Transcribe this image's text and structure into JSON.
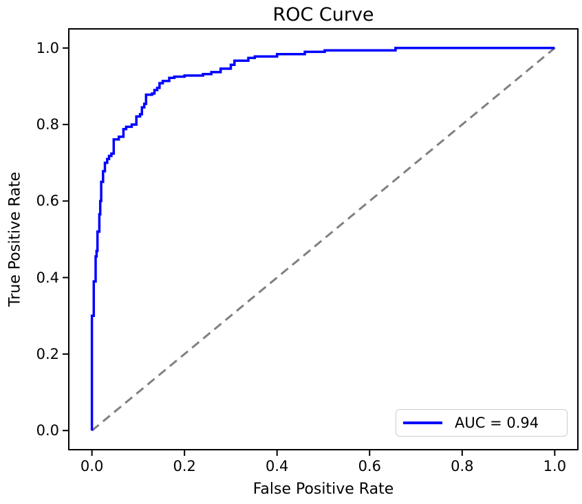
{
  "colors": {
    "curve": "#0000ff",
    "diagonal": "#808080",
    "spine": "#000000",
    "text": "#000000",
    "legend_border": "#cccccc",
    "background": "#ffffff"
  },
  "chart_data": {
    "type": "line",
    "title": "ROC Curve",
    "xlabel": "False Positive Rate",
    "ylabel": "True Positive Rate",
    "xlim": [
      -0.05,
      1.05
    ],
    "ylim": [
      -0.05,
      1.05
    ],
    "grid": false,
    "x_ticks": [
      0.0,
      0.2,
      0.4,
      0.6,
      0.8,
      1.0
    ],
    "y_ticks": [
      0.0,
      0.2,
      0.4,
      0.6,
      0.8,
      1.0
    ],
    "x_tick_labels": [
      "0.0",
      "0.2",
      "0.4",
      "0.6",
      "0.8",
      "1.0"
    ],
    "y_tick_labels": [
      "0.0",
      "0.2",
      "0.4",
      "0.6",
      "0.8",
      "1.0"
    ],
    "legend": {
      "label": "AUC = 0.94",
      "position": "lower right"
    },
    "auc": 0.94,
    "series": [
      {
        "name": "ROC curve",
        "data_name": "roc-curve-line",
        "color": "#0000ff",
        "width": 3.5,
        "dash": "",
        "points": [
          [
            0.0,
            0.0
          ],
          [
            0.0,
            0.3
          ],
          [
            0.004,
            0.3
          ],
          [
            0.004,
            0.39
          ],
          [
            0.008,
            0.39
          ],
          [
            0.008,
            0.455
          ],
          [
            0.01,
            0.455
          ],
          [
            0.01,
            0.47
          ],
          [
            0.012,
            0.47
          ],
          [
            0.012,
            0.52
          ],
          [
            0.016,
            0.52
          ],
          [
            0.016,
            0.565
          ],
          [
            0.018,
            0.565
          ],
          [
            0.018,
            0.6
          ],
          [
            0.02,
            0.6
          ],
          [
            0.02,
            0.65
          ],
          [
            0.024,
            0.65
          ],
          [
            0.024,
            0.678
          ],
          [
            0.028,
            0.678
          ],
          [
            0.028,
            0.7
          ],
          [
            0.033,
            0.7
          ],
          [
            0.033,
            0.71
          ],
          [
            0.037,
            0.71
          ],
          [
            0.037,
            0.718
          ],
          [
            0.042,
            0.718
          ],
          [
            0.042,
            0.724
          ],
          [
            0.047,
            0.724
          ],
          [
            0.047,
            0.761
          ],
          [
            0.058,
            0.761
          ],
          [
            0.058,
            0.768
          ],
          [
            0.068,
            0.768
          ],
          [
            0.068,
            0.788
          ],
          [
            0.074,
            0.788
          ],
          [
            0.074,
            0.794
          ],
          [
            0.086,
            0.794
          ],
          [
            0.086,
            0.8
          ],
          [
            0.096,
            0.8
          ],
          [
            0.096,
            0.821
          ],
          [
            0.104,
            0.821
          ],
          [
            0.104,
            0.827
          ],
          [
            0.108,
            0.827
          ],
          [
            0.108,
            0.845
          ],
          [
            0.113,
            0.845
          ],
          [
            0.113,
            0.854
          ],
          [
            0.117,
            0.854
          ],
          [
            0.117,
            0.878
          ],
          [
            0.13,
            0.878
          ],
          [
            0.13,
            0.881
          ],
          [
            0.135,
            0.881
          ],
          [
            0.135,
            0.89
          ],
          [
            0.141,
            0.89
          ],
          [
            0.141,
            0.896
          ],
          [
            0.146,
            0.896
          ],
          [
            0.146,
            0.908
          ],
          [
            0.153,
            0.908
          ],
          [
            0.153,
            0.914
          ],
          [
            0.167,
            0.914
          ],
          [
            0.167,
            0.922
          ],
          [
            0.178,
            0.922
          ],
          [
            0.178,
            0.925
          ],
          [
            0.2,
            0.925
          ],
          [
            0.2,
            0.928
          ],
          [
            0.24,
            0.928
          ],
          [
            0.24,
            0.932
          ],
          [
            0.258,
            0.932
          ],
          [
            0.258,
            0.937
          ],
          [
            0.278,
            0.937
          ],
          [
            0.278,
            0.946
          ],
          [
            0.3,
            0.946
          ],
          [
            0.3,
            0.956
          ],
          [
            0.308,
            0.956
          ],
          [
            0.308,
            0.967
          ],
          [
            0.338,
            0.967
          ],
          [
            0.338,
            0.974
          ],
          [
            0.352,
            0.974
          ],
          [
            0.352,
            0.978
          ],
          [
            0.4,
            0.978
          ],
          [
            0.4,
            0.984
          ],
          [
            0.46,
            0.984
          ],
          [
            0.46,
            0.99
          ],
          [
            0.503,
            0.99
          ],
          [
            0.503,
            0.994
          ],
          [
            0.656,
            0.994
          ],
          [
            0.656,
            1.0
          ],
          [
            1.0,
            1.0
          ]
        ]
      },
      {
        "name": "chance diagonal",
        "data_name": "chance-diagonal-line",
        "color": "#808080",
        "width": 3,
        "dash": "13,8",
        "points": [
          [
            0.0,
            0.0
          ],
          [
            1.0,
            1.0
          ]
        ]
      }
    ]
  }
}
